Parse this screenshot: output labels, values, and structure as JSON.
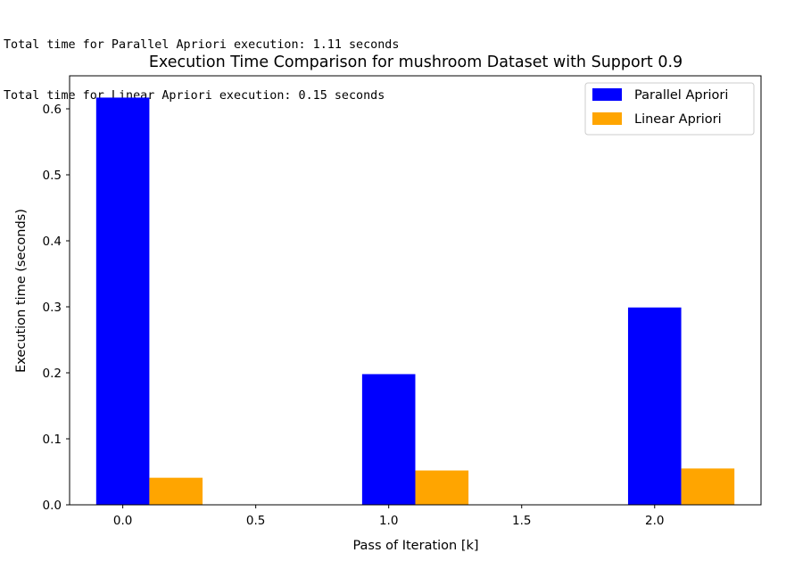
{
  "output": {
    "lines": [
      "Total time for Parallel Apriori execution: 1.11 seconds",
      "Total time for Linear Apriori execution: 0.15 seconds"
    ]
  },
  "chart_data": {
    "type": "bar",
    "title": "Execution Time Comparison for mushroom Dataset with Support 0.9",
    "xlabel": "Pass of Iteration [k]",
    "ylabel": "Execution time (seconds)",
    "xlim": [
      -0.2,
      2.4
    ],
    "ylim": [
      0,
      0.65
    ],
    "xticks": [
      0.0,
      0.5,
      1.0,
      1.5,
      2.0
    ],
    "xtick_labels": [
      "0.0",
      "0.5",
      "1.0",
      "1.5",
      "2.0"
    ],
    "yticks": [
      0.0,
      0.1,
      0.2,
      0.3,
      0.4,
      0.5,
      0.6
    ],
    "ytick_labels": [
      "0.0",
      "0.1",
      "0.2",
      "0.3",
      "0.4",
      "0.5",
      "0.6"
    ],
    "x": [
      0,
      1,
      2
    ],
    "bar_width": 0.2,
    "series": [
      {
        "name": "Parallel Apriori",
        "color": "#0000ff",
        "offset": 0.0,
        "values": [
          0.617,
          0.198,
          0.299
        ]
      },
      {
        "name": "Linear Apriori",
        "color": "#ffa500",
        "offset": 0.2,
        "values": [
          0.041,
          0.052,
          0.055
        ]
      }
    ],
    "legend": "upper right",
    "grid": false
  }
}
